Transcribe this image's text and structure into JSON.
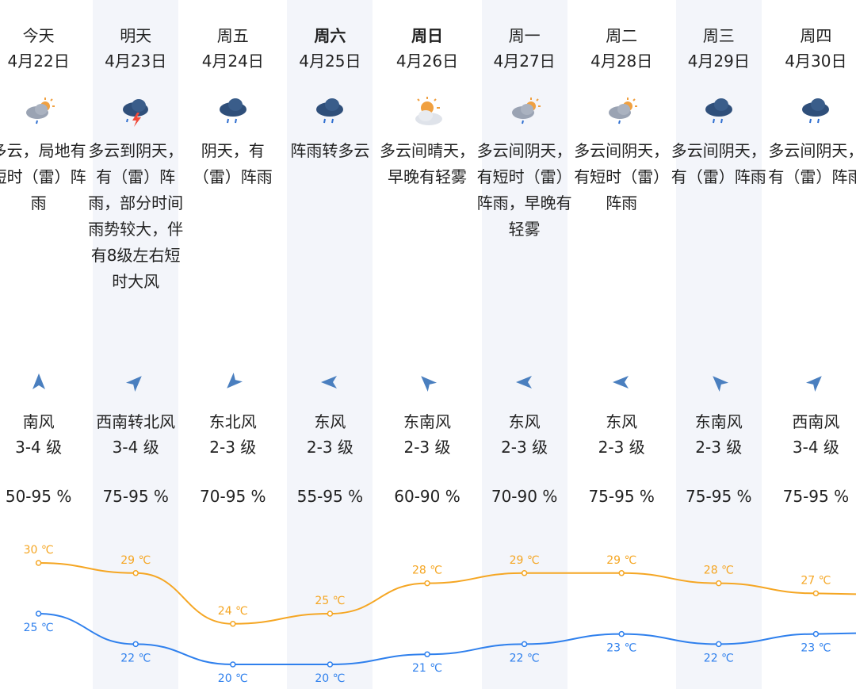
{
  "days": [
    {
      "name": "今天",
      "date": "4月22日",
      "bold": false,
      "icon": "cloudy-shower-icon",
      "desc": "多云，局地有短时（雷）阵雨",
      "wind": "南风",
      "level": "3-4 级",
      "humidity": "50-95 %",
      "high": 30,
      "low": 25,
      "high_label": "30 ℃",
      "low_label": "25 ℃",
      "wind_dir_deg": 0
    },
    {
      "name": "明天",
      "date": "4月23日",
      "bold": false,
      "icon": "thunderstorm-icon",
      "desc": "多云到阴天，有（雷）阵雨，部分时间雨势较大，伴有8级左右短时大风",
      "wind": "西南转北风",
      "level": "3-4 级",
      "humidity": "75-95 %",
      "high": 29,
      "low": 22,
      "high_label": "29 ℃",
      "low_label": "22 ℃",
      "wind_dir_deg": 45
    },
    {
      "name": "周五",
      "date": "4月24日",
      "bold": false,
      "icon": "rain-icon",
      "desc": "阴天，有（雷）阵雨",
      "wind": "东北风",
      "level": "2-3 级",
      "humidity": "70-95 %",
      "high": 24,
      "low": 20,
      "high_label": "24 ℃",
      "low_label": "20 ℃",
      "wind_dir_deg": 225
    },
    {
      "name": "周六",
      "date": "4月25日",
      "bold": true,
      "icon": "rain-icon",
      "desc": "阵雨转多云",
      "wind": "东风",
      "level": "2-3 级",
      "humidity": "55-95 %",
      "high": 25,
      "low": 20,
      "high_label": "25 ℃",
      "low_label": "20 ℃",
      "wind_dir_deg": 270
    },
    {
      "name": "周日",
      "date": "4月26日",
      "bold": true,
      "icon": "partly-sunny-icon",
      "desc": "多云间晴天，早晚有轻雾",
      "wind": "东南风",
      "level": "2-3 级",
      "humidity": "60-90 %",
      "high": 28,
      "low": 21,
      "high_label": "28 ℃",
      "low_label": "21 ℃",
      "wind_dir_deg": 315
    },
    {
      "name": "周一",
      "date": "4月27日",
      "bold": false,
      "icon": "cloudy-shower-icon",
      "desc": "多云间阴天，有短时（雷）阵雨，早晚有轻雾",
      "wind": "东风",
      "level": "2-3 级",
      "humidity": "70-90 %",
      "high": 29,
      "low": 22,
      "high_label": "29 ℃",
      "low_label": "22 ℃",
      "wind_dir_deg": 270
    },
    {
      "name": "周二",
      "date": "4月28日",
      "bold": false,
      "icon": "cloudy-shower-icon",
      "desc": "多云间阴天，有短时（雷）阵雨",
      "wind": "东风",
      "level": "2-3 级",
      "humidity": "75-95 %",
      "high": 29,
      "low": 23,
      "high_label": "29 ℃",
      "low_label": "23 ℃",
      "wind_dir_deg": 270
    },
    {
      "name": "周三",
      "date": "4月29日",
      "bold": false,
      "icon": "rain-icon",
      "desc": "多云间阴天，有（雷）阵雨",
      "wind": "东南风",
      "level": "2-3 级",
      "humidity": "75-95 %",
      "high": 28,
      "low": 22,
      "high_label": "28 ℃",
      "low_label": "22 ℃",
      "wind_dir_deg": 315
    },
    {
      "name": "周四",
      "date": "4月30日",
      "bold": false,
      "icon": "rain-icon",
      "desc": "多云间阴天，有（雷）阵雨",
      "wind": "西南风",
      "level": "3-4 级",
      "humidity": "75-95 %",
      "high": 27,
      "low": 23,
      "high_label": "27 ℃",
      "low_label": "23 ℃",
      "wind_dir_deg": 45
    }
  ],
  "colors": {
    "high": "#f5a623",
    "low": "#2f80ed",
    "shade": "#f3f5fa",
    "arrow": "#4a7fbf"
  },
  "chart_data": {
    "type": "line",
    "categories": [
      "今天",
      "明天",
      "周五",
      "周六",
      "周日",
      "周一",
      "周二",
      "周三",
      "周四"
    ],
    "series": [
      {
        "values": [
          30,
          29,
          24,
          25,
          28,
          29,
          29,
          28,
          27
        ]
      },
      {
        "values": [
          25,
          22,
          20,
          20,
          21,
          22,
          23,
          22,
          23
        ]
      }
    ],
    "tick_labels": {
      "high": [
        "30 ℃",
        "29 ℃",
        "24 ℃",
        "25 ℃",
        "28 ℃",
        "29 ℃",
        "29 ℃",
        "28 ℃",
        "27 ℃"
      ],
      "low": [
        "25 ℃",
        "22 ℃",
        "20 ℃",
        "20 ℃",
        "21 ℃",
        "22 ℃",
        "23 ℃",
        "22 ℃",
        "23 ℃"
      ]
    }
  }
}
